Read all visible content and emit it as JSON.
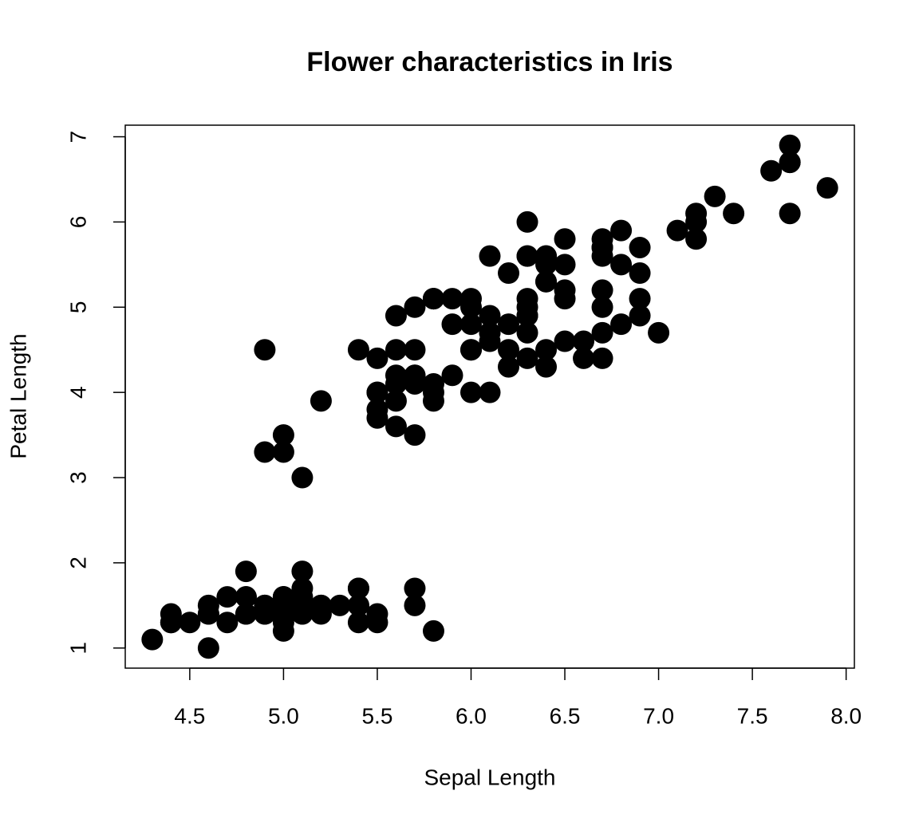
{
  "chart_data": {
    "type": "scatter",
    "title": "Flower characteristics in Iris",
    "x_label": "Sepal Length",
    "y_label": "Petal Length",
    "x": [
      5.1,
      4.9,
      4.7,
      4.6,
      5.0,
      5.4,
      4.6,
      5.0,
      4.4,
      4.9,
      5.4,
      4.8,
      4.8,
      4.3,
      5.8,
      5.7,
      5.4,
      5.1,
      5.7,
      5.1,
      5.4,
      5.1,
      4.6,
      5.1,
      4.8,
      5.0,
      5.0,
      5.2,
      5.2,
      4.7,
      4.8,
      5.4,
      5.2,
      5.5,
      4.9,
      5.0,
      5.5,
      4.9,
      4.4,
      5.1,
      5.0,
      4.5,
      4.4,
      5.0,
      5.1,
      4.8,
      5.1,
      4.6,
      5.3,
      5.0,
      7.0,
      6.4,
      6.9,
      5.5,
      6.5,
      5.7,
      6.3,
      4.9,
      6.6,
      5.2,
      5.0,
      5.9,
      6.0,
      6.1,
      5.6,
      6.7,
      5.6,
      5.8,
      6.2,
      5.6,
      5.9,
      6.1,
      6.3,
      6.1,
      6.4,
      6.6,
      6.8,
      6.7,
      6.0,
      5.7,
      5.5,
      5.5,
      5.8,
      6.0,
      5.4,
      6.0,
      6.7,
      6.3,
      5.6,
      5.5,
      5.5,
      6.1,
      5.8,
      5.0,
      5.6,
      5.7,
      5.7,
      6.2,
      5.1,
      5.7,
      6.3,
      5.8,
      7.1,
      6.3,
      6.5,
      7.6,
      4.9,
      7.3,
      6.7,
      7.2,
      6.5,
      6.4,
      6.8,
      5.7,
      5.8,
      6.4,
      6.5,
      7.7,
      7.7,
      6.0,
      6.9,
      5.6,
      7.7,
      6.3,
      6.7,
      7.2,
      6.2,
      6.1,
      6.4,
      7.2,
      7.4,
      7.9,
      6.4,
      6.3,
      6.1,
      7.7,
      6.3,
      6.4,
      6.0,
      6.9,
      6.7,
      6.9,
      5.8,
      6.8,
      6.7,
      6.7,
      6.3,
      6.5,
      6.2,
      5.9
    ],
    "values": [
      1.4,
      1.4,
      1.3,
      1.5,
      1.4,
      1.7,
      1.4,
      1.5,
      1.4,
      1.5,
      1.5,
      1.6,
      1.4,
      1.1,
      1.2,
      1.5,
      1.3,
      1.4,
      1.7,
      1.5,
      1.7,
      1.5,
      1.0,
      1.7,
      1.9,
      1.6,
      1.6,
      1.5,
      1.4,
      1.6,
      1.6,
      1.5,
      1.5,
      1.4,
      1.5,
      1.2,
      1.3,
      1.4,
      1.3,
      1.5,
      1.3,
      1.3,
      1.3,
      1.6,
      1.9,
      1.4,
      1.6,
      1.4,
      1.5,
      1.4,
      4.7,
      4.5,
      4.9,
      4.0,
      4.6,
      4.5,
      4.7,
      3.3,
      4.6,
      3.9,
      3.5,
      4.2,
      4.0,
      4.7,
      3.6,
      4.4,
      4.5,
      4.1,
      4.5,
      3.9,
      4.8,
      4.0,
      4.9,
      4.7,
      4.3,
      4.4,
      4.8,
      5.0,
      4.5,
      3.5,
      3.8,
      3.7,
      3.9,
      5.1,
      4.5,
      4.5,
      4.7,
      4.4,
      4.1,
      4.0,
      4.4,
      4.6,
      4.0,
      3.3,
      4.2,
      4.2,
      4.2,
      4.3,
      3.0,
      4.1,
      6.0,
      5.1,
      5.9,
      5.6,
      5.8,
      6.6,
      4.5,
      6.3,
      5.8,
      6.1,
      5.1,
      5.3,
      5.5,
      5.0,
      5.1,
      5.3,
      5.5,
      6.7,
      6.9,
      5.0,
      5.7,
      4.9,
      6.7,
      4.9,
      5.7,
      6.0,
      4.8,
      4.9,
      5.6,
      5.8,
      6.1,
      6.4,
      5.6,
      5.1,
      5.6,
      6.1,
      5.6,
      5.5,
      4.8,
      5.4,
      5.6,
      5.1,
      5.1,
      5.9,
      5.7,
      5.2,
      5.0,
      5.2,
      5.4,
      5.1
    ],
    "color": "#000000",
    "xlim": [
      4.156,
      8.044
    ],
    "ylim": [
      0.764,
      7.136
    ],
    "xticks": [
      4.5,
      {
        "value": 5,
        "label": "5.0"
      },
      5.5,
      {
        "value": 6,
        "label": "6.0"
      },
      6.5,
      {
        "value": 7,
        "label": "7.0"
      },
      7.5,
      {
        "value": 8,
        "label": "8.0"
      }
    ],
    "yticks": [
      1,
      2,
      3,
      4,
      5,
      6,
      7
    ]
  }
}
